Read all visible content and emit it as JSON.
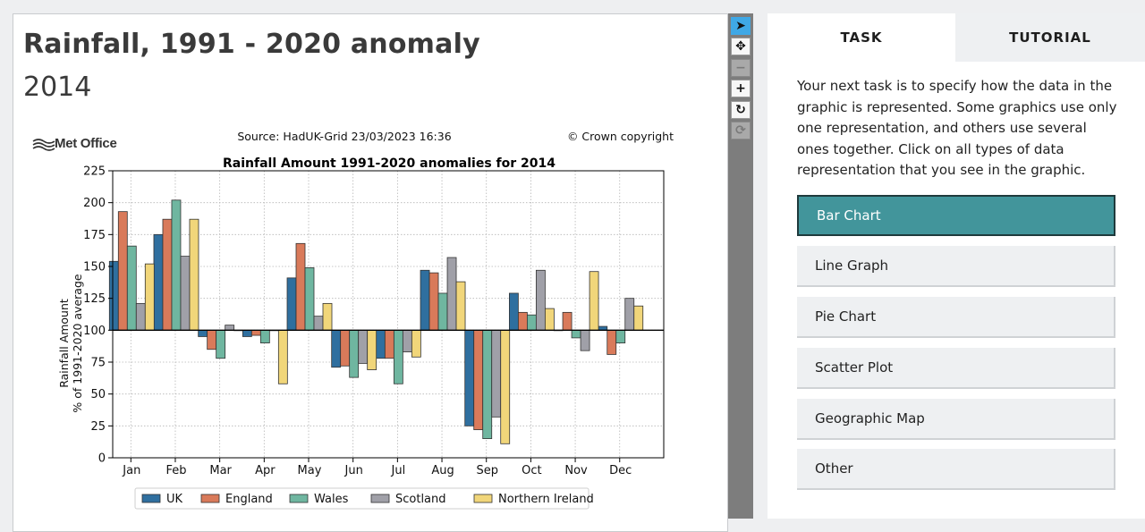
{
  "page": {
    "title": "Rainfall, 1991 - 2020 anomaly",
    "year": "2014"
  },
  "figure": {
    "logo": "Met Office",
    "source": "Source: HadUK-Grid 23/03/2023 16:36",
    "copyright": "© Crown copyright"
  },
  "chart_data": {
    "type": "bar",
    "title": "Rainfall Amount 1991-2020 anomalies for 2014",
    "ylabel_line1": "Rainfall Amount",
    "ylabel_line2": "% of 1991-2020 average",
    "xlabel": "",
    "ylim": [
      0,
      225
    ],
    "yticks": [
      0,
      25,
      50,
      75,
      100,
      125,
      150,
      175,
      200,
      225
    ],
    "baseline": 100,
    "grid": true,
    "legend_position": "bottom",
    "categories": [
      "Jan",
      "Feb",
      "Mar",
      "Apr",
      "May",
      "Jun",
      "Jul",
      "Aug",
      "Sep",
      "Oct",
      "Nov",
      "Dec"
    ],
    "series": [
      {
        "name": "UK",
        "color": "#2f6f9f",
        "values": [
          154,
          175,
          95,
          95,
          141,
          71,
          78,
          147,
          25,
          129,
          100,
          103
        ]
      },
      {
        "name": "England",
        "color": "#d97a5a",
        "values": [
          193,
          187,
          85,
          96,
          168,
          72,
          78,
          145,
          22,
          114,
          114,
          81
        ]
      },
      {
        "name": "Wales",
        "color": "#6fb6a0",
        "values": [
          166,
          202,
          78,
          90,
          149,
          63,
          58,
          129,
          15,
          112,
          94,
          90
        ]
      },
      {
        "name": "Scotland",
        "color": "#a0a0a8",
        "values": [
          121,
          158,
          104,
          100,
          111,
          74,
          83,
          157,
          32,
          147,
          84,
          125
        ]
      },
      {
        "name": "Northern Ireland",
        "color": "#f1d67a",
        "values": [
          152,
          187,
          100,
          58,
          121,
          69,
          79,
          138,
          11,
          117,
          146,
          119
        ]
      }
    ]
  },
  "toolbar": {
    "buttons": [
      {
        "name": "pointer-tool",
        "glyph": "➤"
      },
      {
        "name": "pan-tool",
        "glyph": "✥"
      },
      {
        "name": "zoom-out",
        "glyph": "−"
      },
      {
        "name": "zoom-in",
        "glyph": "+"
      },
      {
        "name": "reset-view",
        "glyph": "↻"
      },
      {
        "name": "refresh",
        "glyph": "⟳"
      }
    ]
  },
  "right": {
    "tab_task": "TASK",
    "tab_tutorial": "TUTORIAL",
    "task_text": "Your next task is to specify how the data in the graphic is represented. Some graphics use only one representation, and others use several ones together. Click on all types of data representation that you see in the graphic.",
    "options": [
      "Bar Chart",
      "Line Graph",
      "Pie Chart",
      "Scatter Plot",
      "Geographic Map",
      "Other"
    ],
    "selected_option": "Bar Chart"
  }
}
